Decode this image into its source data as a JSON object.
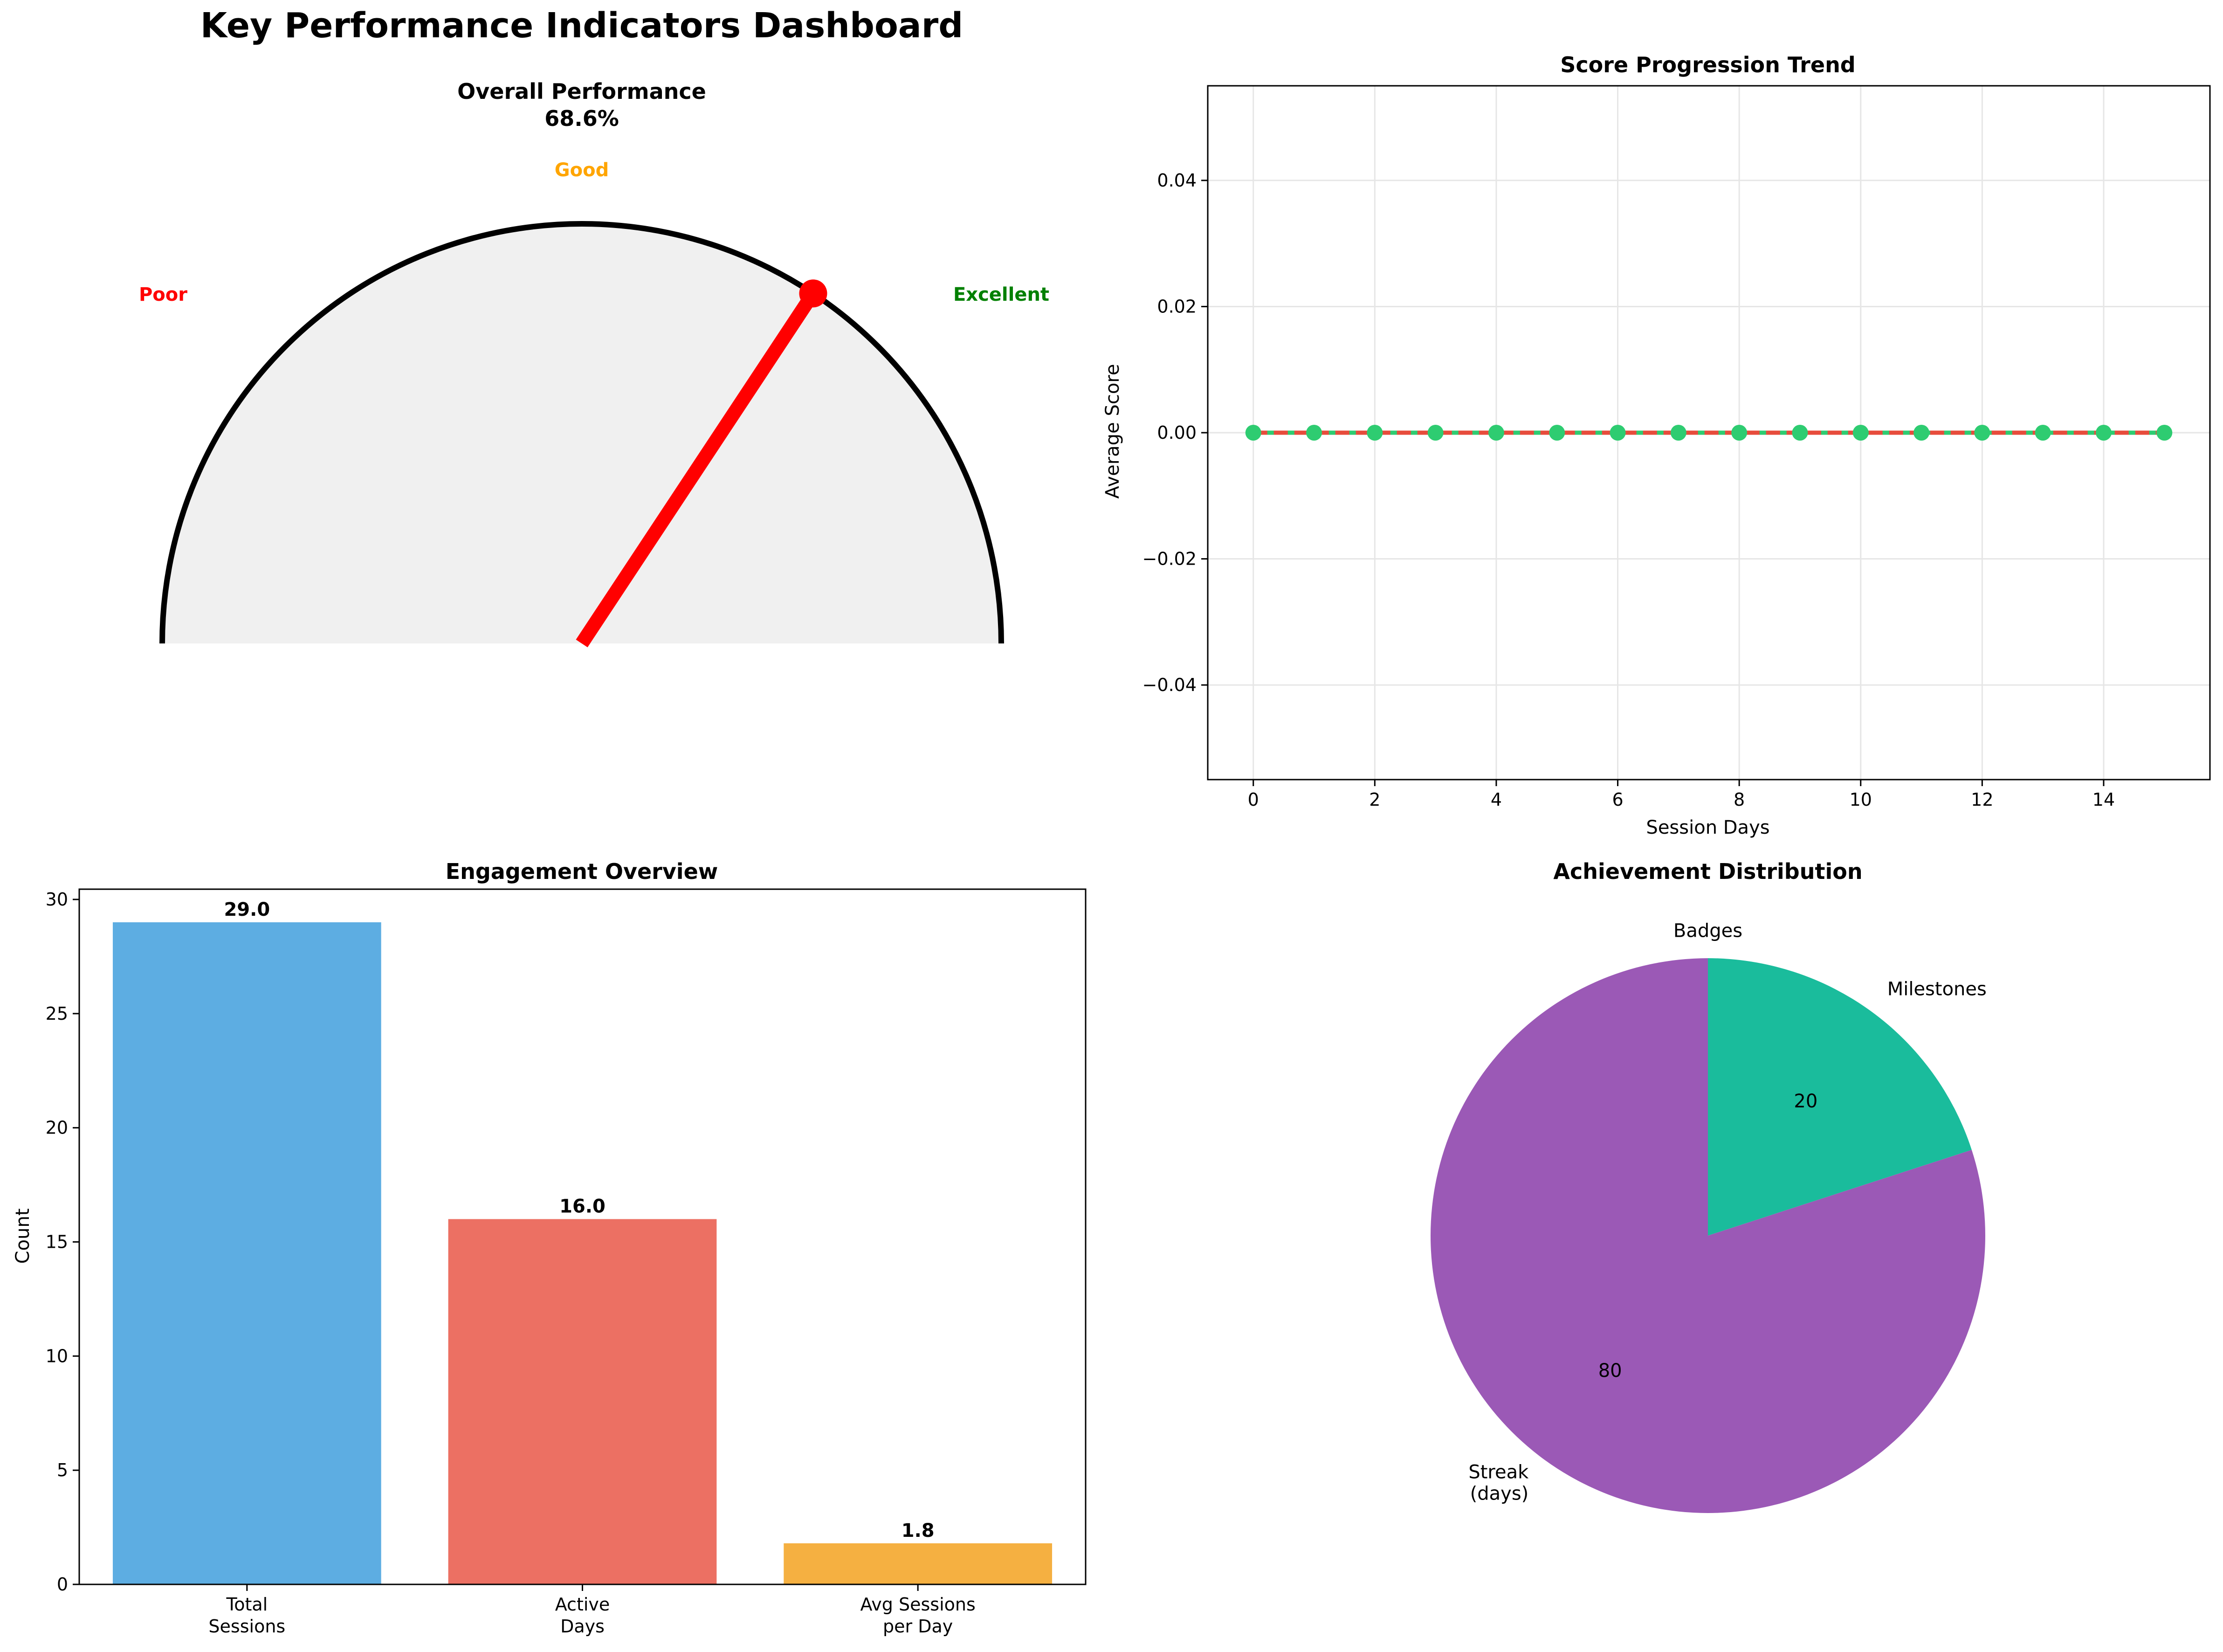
{
  "figure": {
    "title": "Key Performance Indicators Dashboard"
  },
  "chart_data": [
    {
      "type": "gauge",
      "title": "Overall Performance",
      "value_label": "68.6%",
      "value": 68.6,
      "range": [
        0,
        100
      ],
      "zone_labels": [
        {
          "label": "Poor",
          "color": "#ff0000"
        },
        {
          "label": "Good",
          "color": "#ffa500"
        },
        {
          "label": "Excellent",
          "color": "#008000"
        }
      ],
      "needle_color": "#ff0000",
      "face_color": "#f0f0f0"
    },
    {
      "type": "line",
      "title": "Score Progression Trend",
      "xlabel": "Session Days",
      "ylabel": "Average Score",
      "x": [
        0,
        1,
        2,
        3,
        4,
        5,
        6,
        7,
        8,
        9,
        10,
        11,
        12,
        13,
        14,
        15
      ],
      "series": [
        {
          "values": [
            0,
            0,
            0,
            0,
            0,
            0,
            0,
            0,
            0,
            0,
            0,
            0,
            0,
            0,
            0,
            0
          ],
          "color": "#2ecc71"
        }
      ],
      "trend_line": {
        "values": [
          0,
          0
        ],
        "color": "#e74c3c",
        "style": "dashed"
      },
      "xlim": [
        -0.75,
        15.75
      ],
      "ylim": [
        -0.055,
        0.055
      ],
      "x_ticks": [
        "0",
        "2",
        "4",
        "6",
        "8",
        "10",
        "12",
        "14"
      ],
      "x_tick_values": [
        0,
        2,
        4,
        6,
        8,
        10,
        12,
        14
      ],
      "y_ticks": [
        "−0.04",
        "−0.02",
        "0.00",
        "0.02",
        "0.04"
      ],
      "y_tick_values": [
        -0.04,
        -0.02,
        0,
        0.02,
        0.04
      ],
      "grid": true
    },
    {
      "type": "bar",
      "title": "Engagement Overview",
      "ylabel": "Count",
      "categories": [
        [
          "Total",
          "Sessions"
        ],
        [
          "Active",
          "Days"
        ],
        [
          "Avg Sessions",
          "per Day"
        ]
      ],
      "values": [
        29.0,
        16.0,
        1.8
      ],
      "value_labels": [
        "29.0",
        "16.0",
        "1.8"
      ],
      "colors": [
        "#5dade2",
        "#ec7063",
        "#f5b041"
      ],
      "ylim": [
        0,
        30.45
      ],
      "y_ticks": [
        "0",
        "5",
        "10",
        "15",
        "20",
        "25",
        "30"
      ],
      "y_tick_values": [
        0,
        5,
        10,
        15,
        20,
        25,
        30
      ]
    },
    {
      "type": "pie",
      "title": "Achievement Distribution",
      "labels": [
        [
          "Badges"
        ],
        [
          "Milestones"
        ],
        [
          "Streak",
          "(days)"
        ]
      ],
      "values": [
        0,
        20,
        80
      ],
      "value_labels": [
        "0",
        "20",
        "80"
      ],
      "colors": [
        "#3498db",
        "#1abc9c",
        "#9b59b6"
      ],
      "start_angle": 90,
      "direction": "clockwise"
    }
  ]
}
